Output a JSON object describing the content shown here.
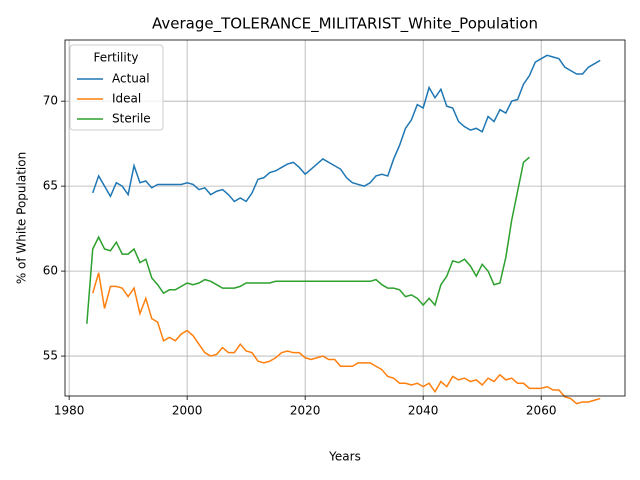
{
  "chart_data": {
    "type": "line",
    "title": "Average_TOLERANCE_MILITARIST_White_Population",
    "xlabel": "Years",
    "ylabel": "% of White Population",
    "legend_title": "Fertility",
    "legend": "upper left",
    "grid": true,
    "xlim": [
      1979.3,
      2074.2
    ],
    "ylim": [
      52.65,
      73.6
    ],
    "xticks": [
      1980,
      2000,
      2020,
      2040,
      2060
    ],
    "yticks": [
      55,
      60,
      65,
      70
    ],
    "x": [
      1983,
      1984,
      1985,
      1986,
      1987,
      1988,
      1989,
      1990,
      1991,
      1992,
      1993,
      1994,
      1995,
      1996,
      1997,
      1998,
      1999,
      2000,
      2001,
      2002,
      2003,
      2004,
      2005,
      2006,
      2007,
      2008,
      2009,
      2010,
      2011,
      2012,
      2013,
      2014,
      2015,
      2016,
      2017,
      2018,
      2019,
      2020,
      2021,
      2022,
      2023,
      2024,
      2025,
      2026,
      2027,
      2028,
      2029,
      2030,
      2031,
      2032,
      2033,
      2034,
      2035,
      2036,
      2037,
      2038,
      2039,
      2040,
      2041,
      2042,
      2043,
      2044,
      2045,
      2046,
      2047,
      2048,
      2049,
      2050,
      2051,
      2052,
      2053,
      2054,
      2055,
      2056,
      2057,
      2058,
      2059,
      2060,
      2061,
      2062,
      2063,
      2064,
      2065,
      2066,
      2067,
      2068,
      2069,
      2070
    ],
    "series": [
      {
        "name": "Actual",
        "color": "#1f77b4",
        "values": [
          null,
          64.6,
          65.6,
          65.0,
          64.4,
          65.2,
          65.0,
          64.5,
          66.2,
          65.2,
          65.3,
          64.9,
          65.1,
          65.1,
          65.1,
          65.1,
          65.1,
          65.2,
          65.1,
          64.8,
          64.9,
          64.5,
          64.7,
          64.8,
          64.5,
          64.1,
          64.3,
          64.1,
          64.6,
          65.4,
          65.5,
          65.8,
          65.9,
          66.1,
          66.3,
          66.4,
          66.1,
          65.7,
          66.0,
          66.3,
          66.6,
          66.4,
          66.2,
          66.0,
          65.5,
          65.2,
          65.1,
          65.0,
          65.2,
          65.6,
          65.7,
          65.6,
          66.6,
          67.4,
          68.4,
          68.9,
          69.8,
          69.6,
          70.8,
          70.2,
          70.7,
          69.7,
          69.6,
          68.8,
          68.5,
          68.3,
          68.4,
          68.2,
          69.1,
          68.8,
          69.5,
          69.3,
          70.0,
          70.1,
          71.0,
          71.5,
          72.3,
          72.5,
          72.7,
          72.6,
          72.5,
          72.0,
          71.8,
          71.6,
          71.6,
          72.0,
          72.2,
          72.4
        ]
      },
      {
        "name": "Ideal",
        "color": "#ff7f0e",
        "values": [
          null,
          58.7,
          59.9,
          57.8,
          59.1,
          59.1,
          59.0,
          58.5,
          59.0,
          57.5,
          58.4,
          57.2,
          57.0,
          55.9,
          56.1,
          55.9,
          56.3,
          56.5,
          56.2,
          55.7,
          55.2,
          55.0,
          55.1,
          55.5,
          55.2,
          55.2,
          55.7,
          55.3,
          55.2,
          54.7,
          54.6,
          54.7,
          54.9,
          55.2,
          55.3,
          55.2,
          55.2,
          54.9,
          54.8,
          54.9,
          55.0,
          54.8,
          54.8,
          54.4,
          54.4,
          54.4,
          54.6,
          54.6,
          54.6,
          54.4,
          54.2,
          53.8,
          53.7,
          53.4,
          53.4,
          53.3,
          53.4,
          53.2,
          53.4,
          52.9,
          53.5,
          53.2,
          53.8,
          53.6,
          53.7,
          53.5,
          53.6,
          53.3,
          53.7,
          53.5,
          53.9,
          53.6,
          53.7,
          53.4,
          53.4,
          53.1,
          53.1,
          53.1,
          53.2,
          53.0,
          53.0,
          52.6,
          52.5,
          52.2,
          52.3,
          52.3,
          52.4,
          52.5
        ]
      },
      {
        "name": "Sterile",
        "color": "#2ca02c",
        "values": [
          56.9,
          61.3,
          62.0,
          61.3,
          61.2,
          61.7,
          61.0,
          61.0,
          61.3,
          60.5,
          60.7,
          59.6,
          59.2,
          58.7,
          58.9,
          58.9,
          59.1,
          59.3,
          59.2,
          59.3,
          59.5,
          59.4,
          59.2,
          59.0,
          59.0,
          59.0,
          59.1,
          59.3,
          59.3,
          59.3,
          59.3,
          59.3,
          59.4,
          59.4,
          59.4,
          59.4,
          59.4,
          59.4,
          59.4,
          59.4,
          59.4,
          59.4,
          59.4,
          59.4,
          59.4,
          59.4,
          59.4,
          59.4,
          59.4,
          59.5,
          59.2,
          59.0,
          59.0,
          58.9,
          58.5,
          58.6,
          58.4,
          58.0,
          58.4,
          58.0,
          59.2,
          59.7,
          60.6,
          60.5,
          60.7,
          60.3,
          59.7,
          60.4,
          60.0,
          59.2,
          59.3,
          60.8,
          63.0,
          64.7,
          66.4,
          66.7,
          null,
          null,
          null,
          null,
          null,
          null,
          null,
          null,
          null,
          null,
          null,
          null
        ]
      }
    ]
  }
}
